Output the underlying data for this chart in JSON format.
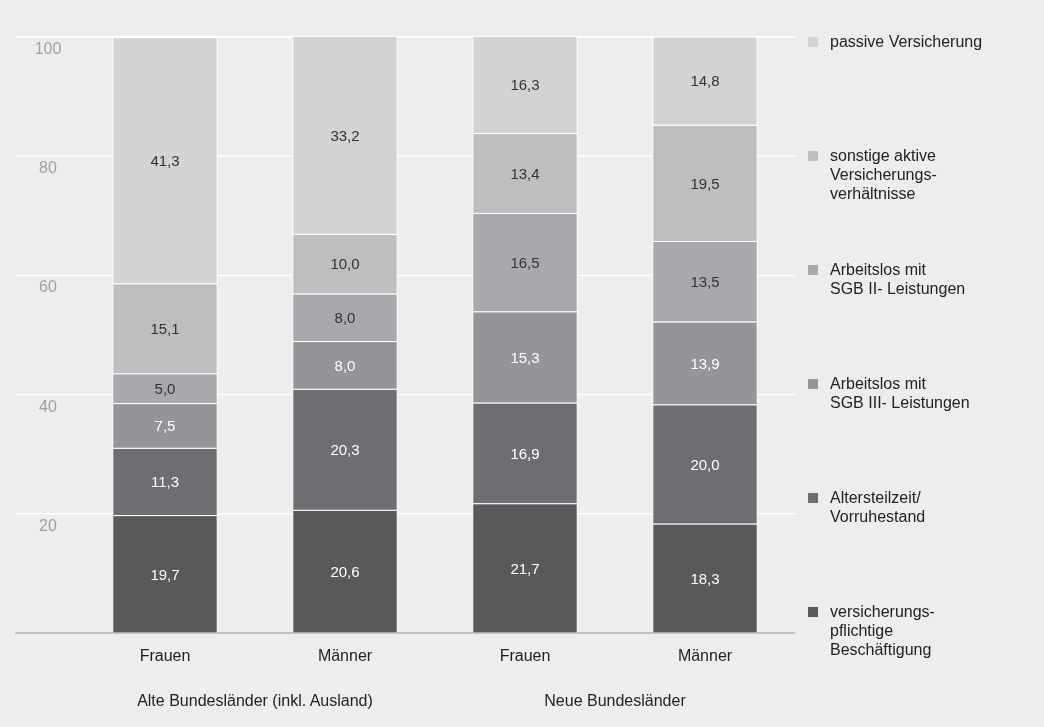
{
  "chart_data": {
    "type": "bar",
    "stacked": true,
    "categories": [
      "Frauen",
      "Männer",
      "Frauen",
      "Männer"
    ],
    "series": [
      {
        "name": "versicherungs-\npflichtige\nBeschäftigung",
        "color": "#58595b",
        "values": [
          19.7,
          20.6,
          21.7,
          18.3
        ],
        "value_labels": [
          "19,7",
          "20,6",
          "21,7",
          "18,3"
        ]
      },
      {
        "name": "Altersteilzeit/\nVorruhestand",
        "color": "#6d6e71",
        "values": [
          11.3,
          20.3,
          16.9,
          20.0
        ],
        "value_labels": [
          "11,3",
          "20,3",
          "16,9",
          "20,0"
        ]
      },
      {
        "name": "Arbeitslos mit\nSGB III- Leistungen",
        "color": "#939598",
        "values": [
          7.5,
          8.0,
          15.3,
          13.9
        ],
        "value_labels": [
          "7,5",
          "8,0",
          "15,3",
          "13,9"
        ]
      },
      {
        "name": "Arbeitslos mit\nSGB II- Leistungen",
        "color": "#a7a9ac",
        "values": [
          5.0,
          8.0,
          16.5,
          13.5
        ],
        "value_labels": [
          "5,0",
          "8,0",
          "16,5",
          "13,5"
        ]
      },
      {
        "name": "sonstige aktive\nVersicherungs-\nverhältnisse",
        "color": "#bcbec0",
        "values": [
          15.1,
          10.0,
          13.4,
          19.5
        ],
        "value_labels": [
          "15,1",
          "10,0",
          "13,4",
          "19,5"
        ]
      },
      {
        "name": "passive Versicherung",
        "color": "#d1d3d4",
        "values": [
          41.3,
          33.2,
          16.3,
          14.8
        ],
        "value_labels": [
          "41,3",
          "33,2",
          "16,3",
          "14,8"
        ]
      }
    ],
    "ylim": [
      0,
      100
    ],
    "yticks": [
      20,
      40,
      60,
      80,
      100
    ],
    "grid": "y",
    "legend": "right",
    "annotations": [
      "Alte Bundesländer (inkl. Ausland)",
      "Neue Bundesländer"
    ]
  }
}
